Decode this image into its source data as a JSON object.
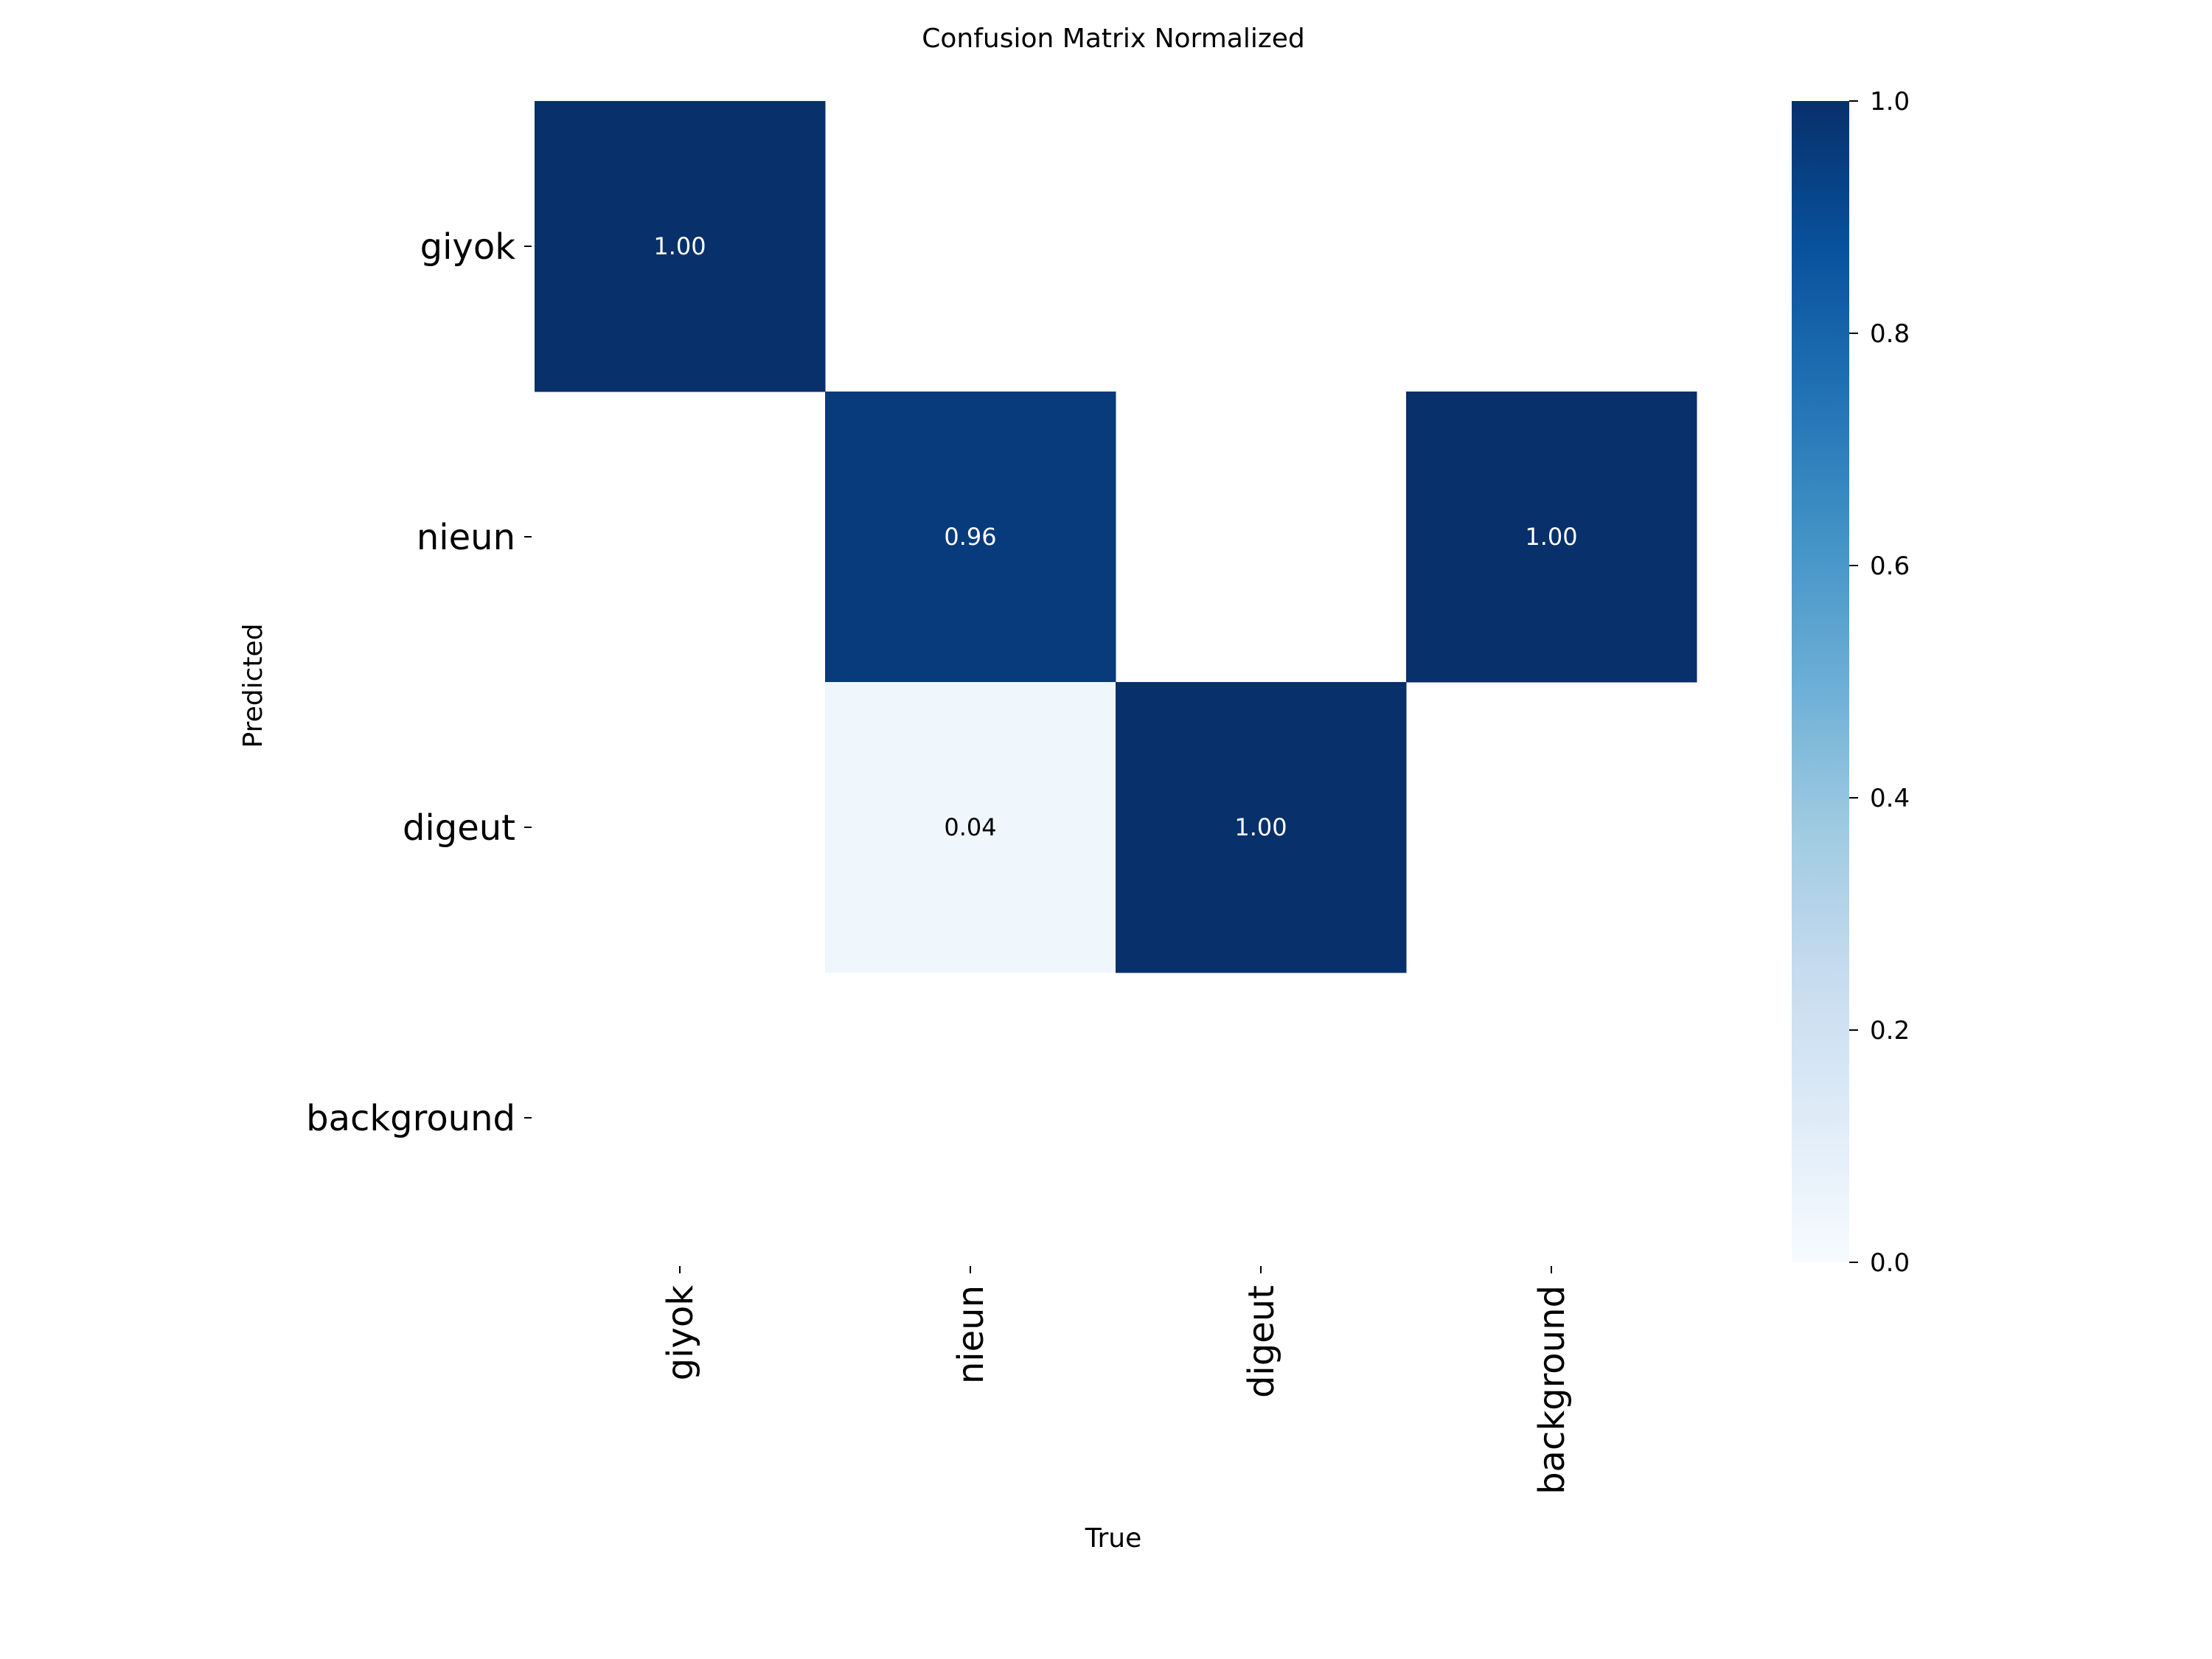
{
  "chart_data": {
    "type": "heatmap",
    "title": "Confusion Matrix Normalized",
    "xlabel": "True",
    "ylabel": "Predicted",
    "x_categories": [
      "giyok",
      "nieun",
      "digeut",
      "background"
    ],
    "y_categories": [
      "giyok",
      "nieun",
      "digeut",
      "background"
    ],
    "values": [
      [
        1.0,
        null,
        null,
        null
      ],
      [
        null,
        0.96,
        null,
        1.0
      ],
      [
        null,
        0.04,
        1.0,
        null
      ],
      [
        null,
        null,
        null,
        null
      ]
    ],
    "value_format": "0.00",
    "colormap": "Blues",
    "colorbar": {
      "range": [
        0.0,
        1.0
      ],
      "ticks": [
        "0.0",
        "0.2",
        "0.4",
        "0.6",
        "0.8",
        "1.0"
      ]
    }
  }
}
